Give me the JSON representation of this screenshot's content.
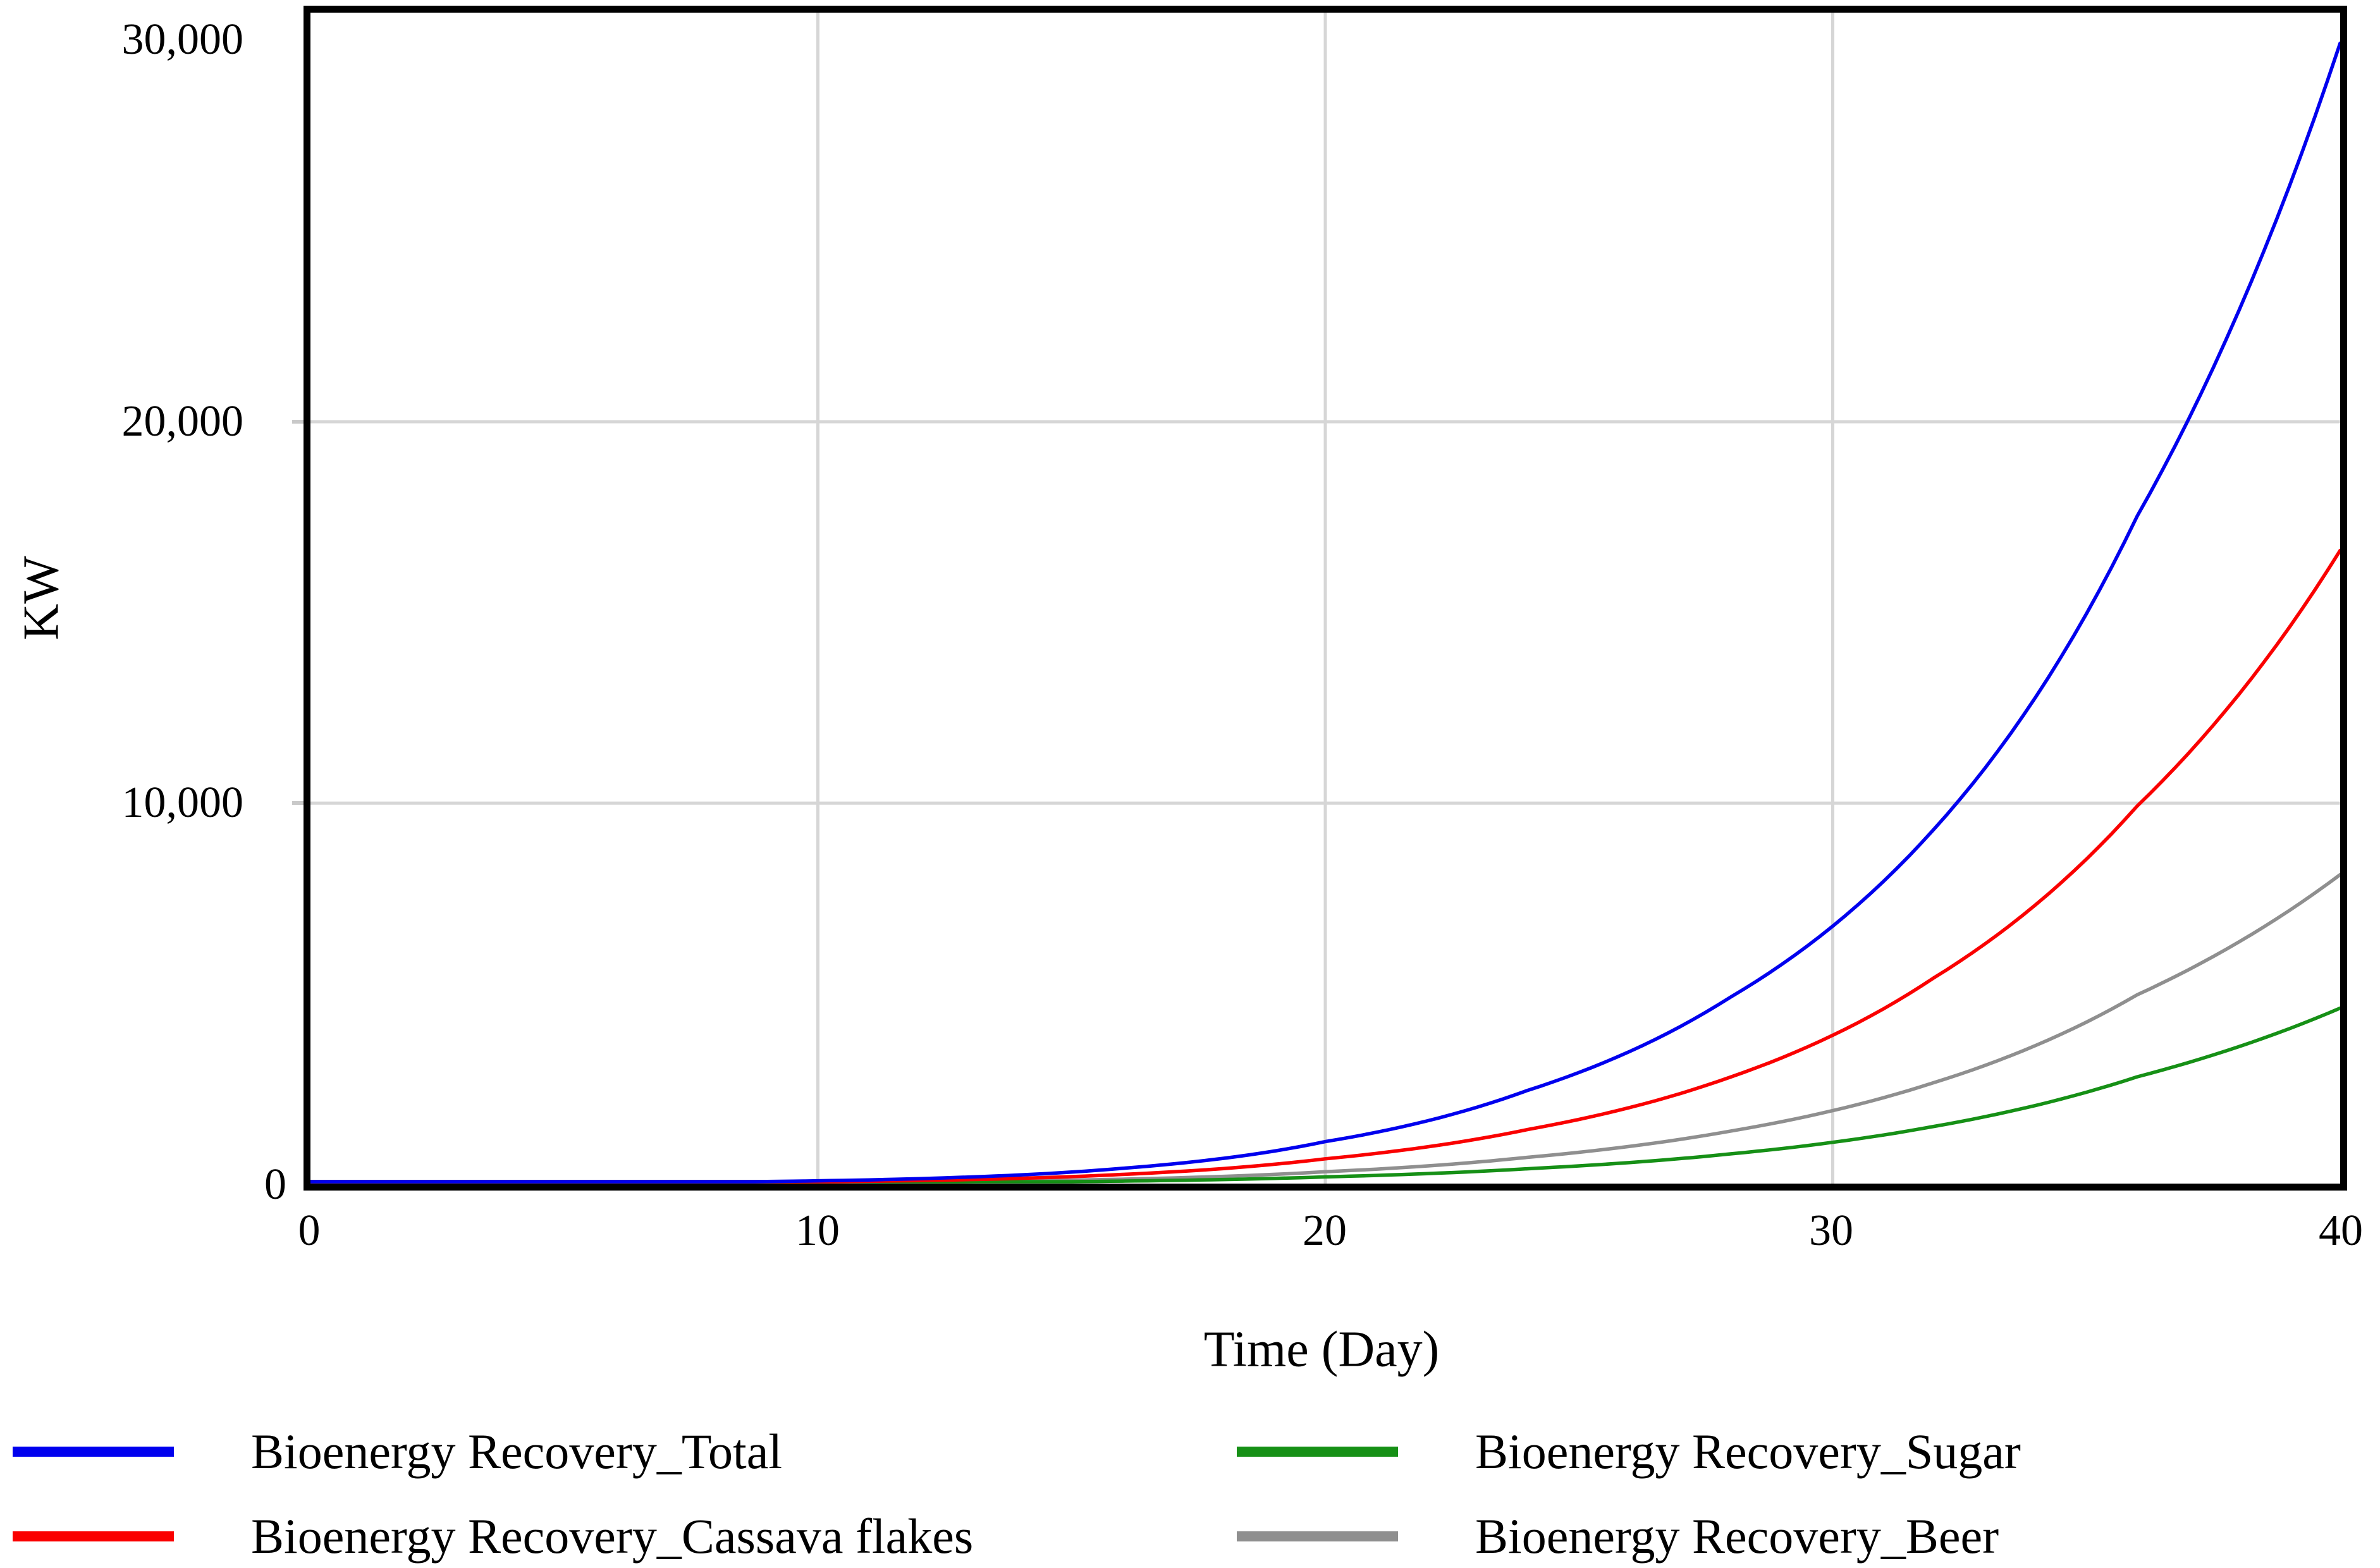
{
  "chart_data": {
    "type": "line",
    "title": "",
    "xlabel": "Time (Day)",
    "ylabel": "KW",
    "xlim": [
      0,
      40
    ],
    "ylim": [
      0,
      30700
    ],
    "grid": {
      "vertical_at_x": [
        10,
        20,
        30
      ],
      "horizontal_at_y": [
        10000,
        20000
      ],
      "color": "#d6d6d6"
    },
    "x_ticks": [
      {
        "label": "0",
        "t": 0
      },
      {
        "label": "10",
        "t": 10
      },
      {
        "label": "20",
        "t": 20
      },
      {
        "label": "30",
        "t": 30
      },
      {
        "label": "40",
        "t": 40
      }
    ],
    "y_ticks": [
      {
        "label": "0",
        "v": 0
      },
      {
        "label": "10,000",
        "v": 10000
      },
      {
        "label": "20,000",
        "v": 20000
      },
      {
        "label": "30,000",
        "v": 30000
      }
    ],
    "x": [
      0,
      4,
      8,
      12,
      16,
      20,
      24,
      28,
      32,
      36,
      40
    ],
    "series": [
      {
        "name": "Bioenergy Recovery_Total",
        "color": "#0000ee",
        "values": [
          0,
          10,
          40,
          130,
          400,
          1100,
          2450,
          4900,
          9300,
          17500,
          29900
        ]
      },
      {
        "name": "Bioenergy Recovery_Cassava flakes",
        "color": "#fa0000",
        "values": [
          0,
          6,
          25,
          80,
          240,
          650,
          1420,
          2800,
          5400,
          9900,
          16600
        ]
      },
      {
        "name": "Bioenergy Recovery_Sugar",
        "color": "#169016",
        "values": [
          0,
          2,
          7,
          22,
          65,
          175,
          390,
          780,
          1500,
          2800,
          4600
        ]
      },
      {
        "name": "Bioenergy Recovery_Beer",
        "color": "#8f8f8f",
        "values": [
          0,
          3,
          12,
          40,
          115,
          310,
          690,
          1380,
          2650,
          4950,
          8100
        ]
      }
    ],
    "legend_position": "bottom"
  },
  "axes": {
    "x_label": "Time (Day)",
    "y_label": "KW"
  },
  "legend": {
    "items": [
      {
        "label": "Bioenergy Recovery_Total",
        "color": "#0000ee"
      },
      {
        "label": "Bioenergy Recovery_Sugar",
        "color": "#169016"
      },
      {
        "label": "Bioenergy Recovery_Cassava flakes",
        "color": "#fa0000"
      },
      {
        "label": "Bioenergy Recovery_Beer",
        "color": "#8f8f8f"
      }
    ]
  }
}
